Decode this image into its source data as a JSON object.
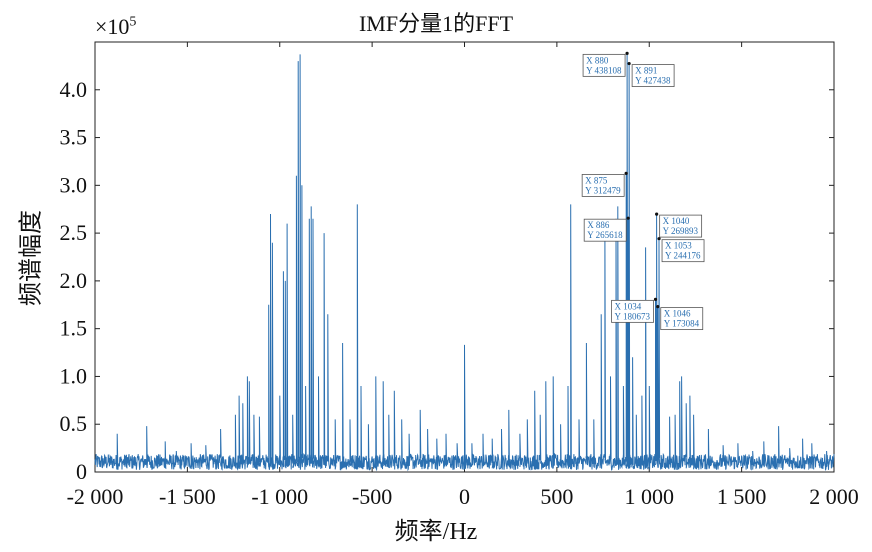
{
  "chart_data": {
    "type": "line",
    "title": "IMF分量1的FFT",
    "xlabel": "频率/Hz",
    "ylabel": "频谱幅度",
    "y_multiplier": "×10",
    "y_multiplier_exp": "5",
    "xlim": [
      -2000,
      2000
    ],
    "ylim": [
      0,
      450000
    ],
    "xticks": [
      -2000,
      -1500,
      -1000,
      -500,
      0,
      500,
      1000,
      1500,
      2000
    ],
    "xtick_labels": [
      "-2 000",
      "-1 500",
      "-1 000",
      "-500",
      "0",
      "500",
      "1 000",
      "1 500",
      "2 000"
    ],
    "yticks": [
      0,
      50000,
      100000,
      150000,
      200000,
      250000,
      300000,
      350000,
      400000
    ],
    "ytick_labels": [
      "0",
      "0.5",
      "1.0",
      "1.5",
      "2.0",
      "2.5",
      "3.0",
      "3.5",
      "4.0"
    ],
    "line_color": "#2a6fb0",
    "noise_floor": 15000,
    "peaks": [
      {
        "x": -1880,
        "y": 40000
      },
      {
        "x": -1830,
        "y": 18000
      },
      {
        "x": -1720,
        "y": 48000
      },
      {
        "x": -1620,
        "y": 32000
      },
      {
        "x": -1560,
        "y": 22000
      },
      {
        "x": -1480,
        "y": 30000
      },
      {
        "x": -1400,
        "y": 28000
      },
      {
        "x": -1320,
        "y": 45000
      },
      {
        "x": -1240,
        "y": 60000
      },
      {
        "x": -1220,
        "y": 80000
      },
      {
        "x": -1200,
        "y": 72000
      },
      {
        "x": -1175,
        "y": 100000
      },
      {
        "x": -1165,
        "y": 95000
      },
      {
        "x": -1140,
        "y": 60000
      },
      {
        "x": -1110,
        "y": 58000
      },
      {
        "x": -1060,
        "y": 175000
      },
      {
        "x": -1050,
        "y": 270000
      },
      {
        "x": -1040,
        "y": 240000
      },
      {
        "x": -1000,
        "y": 80000
      },
      {
        "x": -980,
        "y": 210000
      },
      {
        "x": -970,
        "y": 200000
      },
      {
        "x": -960,
        "y": 260000
      },
      {
        "x": -930,
        "y": 60000
      },
      {
        "x": -910,
        "y": 310000
      },
      {
        "x": -900,
        "y": 430000
      },
      {
        "x": -890,
        "y": 437000
      },
      {
        "x": -880,
        "y": 300000
      },
      {
        "x": -860,
        "y": 90000
      },
      {
        "x": -840,
        "y": 265000
      },
      {
        "x": -830,
        "y": 278000
      },
      {
        "x": -820,
        "y": 265000
      },
      {
        "x": -790,
        "y": 100000
      },
      {
        "x": -760,
        "y": 250000
      },
      {
        "x": -740,
        "y": 165000
      },
      {
        "x": -700,
        "y": 55000
      },
      {
        "x": -660,
        "y": 135000
      },
      {
        "x": -620,
        "y": 55000
      },
      {
        "x": -580,
        "y": 280000
      },
      {
        "x": -560,
        "y": 90000
      },
      {
        "x": -520,
        "y": 50000
      },
      {
        "x": -480,
        "y": 100000
      },
      {
        "x": -440,
        "y": 95000
      },
      {
        "x": -410,
        "y": 60000
      },
      {
        "x": -380,
        "y": 85000
      },
      {
        "x": -340,
        "y": 55000
      },
      {
        "x": -300,
        "y": 40000
      },
      {
        "x": -240,
        "y": 65000
      },
      {
        "x": -200,
        "y": 45000
      },
      {
        "x": -150,
        "y": 35000
      },
      {
        "x": -100,
        "y": 40000
      },
      {
        "x": -40,
        "y": 30000
      },
      {
        "x": 0,
        "y": 133000
      },
      {
        "x": 40,
        "y": 30000
      },
      {
        "x": 100,
        "y": 40000
      },
      {
        "x": 150,
        "y": 35000
      },
      {
        "x": 200,
        "y": 45000
      },
      {
        "x": 240,
        "y": 65000
      },
      {
        "x": 300,
        "y": 40000
      },
      {
        "x": 340,
        "y": 55000
      },
      {
        "x": 380,
        "y": 85000
      },
      {
        "x": 410,
        "y": 60000
      },
      {
        "x": 440,
        "y": 95000
      },
      {
        "x": 480,
        "y": 100000
      },
      {
        "x": 520,
        "y": 50000
      },
      {
        "x": 560,
        "y": 90000
      },
      {
        "x": 575,
        "y": 280000
      },
      {
        "x": 620,
        "y": 55000
      },
      {
        "x": 660,
        "y": 135000
      },
      {
        "x": 700,
        "y": 55000
      },
      {
        "x": 740,
        "y": 165000
      },
      {
        "x": 760,
        "y": 250000
      },
      {
        "x": 790,
        "y": 100000
      },
      {
        "x": 820,
        "y": 265000
      },
      {
        "x": 830,
        "y": 278000
      },
      {
        "x": 860,
        "y": 90000
      },
      {
        "x": 875,
        "y": 312479
      },
      {
        "x": 880,
        "y": 438108
      },
      {
        "x": 886,
        "y": 265618
      },
      {
        "x": 891,
        "y": 427438
      },
      {
        "x": 910,
        "y": 120000
      },
      {
        "x": 930,
        "y": 60000
      },
      {
        "x": 960,
        "y": 80000
      },
      {
        "x": 980,
        "y": 235000
      },
      {
        "x": 1000,
        "y": 90000
      },
      {
        "x": 1034,
        "y": 180673
      },
      {
        "x": 1040,
        "y": 269893
      },
      {
        "x": 1046,
        "y": 173084
      },
      {
        "x": 1053,
        "y": 244176
      },
      {
        "x": 1110,
        "y": 58000
      },
      {
        "x": 1140,
        "y": 60000
      },
      {
        "x": 1165,
        "y": 95000
      },
      {
        "x": 1175,
        "y": 100000
      },
      {
        "x": 1200,
        "y": 72000
      },
      {
        "x": 1220,
        "y": 80000
      },
      {
        "x": 1240,
        "y": 60000
      },
      {
        "x": 1320,
        "y": 45000
      },
      {
        "x": 1400,
        "y": 28000
      },
      {
        "x": 1480,
        "y": 30000
      },
      {
        "x": 1560,
        "y": 22000
      },
      {
        "x": 1620,
        "y": 32000
      },
      {
        "x": 1700,
        "y": 48000
      },
      {
        "x": 1760,
        "y": 25000
      },
      {
        "x": 1830,
        "y": 35000
      },
      {
        "x": 1880,
        "y": 30000
      },
      {
        "x": 1960,
        "y": 22000
      }
    ],
    "datatips": [
      {
        "name": "datatip-880",
        "x_label": "X",
        "x_value": "880",
        "y_label": "Y",
        "y_value": "438108",
        "x": 880,
        "y": 438108,
        "side": "left"
      },
      {
        "name": "datatip-891",
        "x_label": "X",
        "x_value": "891",
        "y_label": "Y",
        "y_value": "427438",
        "x": 891,
        "y": 427438,
        "side": "right"
      },
      {
        "name": "datatip-875",
        "x_label": "X",
        "x_value": "875",
        "y_label": "Y",
        "y_value": "312479",
        "x": 875,
        "y": 312479,
        "side": "left"
      },
      {
        "name": "datatip-886",
        "x_label": "X",
        "x_value": "886",
        "y_label": "Y",
        "y_value": "265618",
        "x": 886,
        "y": 265618,
        "side": "left"
      },
      {
        "name": "datatip-1040",
        "x_label": "X",
        "x_value": "1040",
        "y_label": "Y",
        "y_value": "269893",
        "x": 1040,
        "y": 269893,
        "side": "right"
      },
      {
        "name": "datatip-1053",
        "x_label": "X",
        "x_value": "1053",
        "y_label": "Y",
        "y_value": "244176",
        "x": 1053,
        "y": 244176,
        "side": "right"
      },
      {
        "name": "datatip-1034",
        "x_label": "X",
        "x_value": "1034",
        "y_label": "Y",
        "y_value": "180673",
        "x": 1034,
        "y": 180673,
        "side": "left"
      },
      {
        "name": "datatip-1046",
        "x_label": "X",
        "x_value": "1046",
        "y_label": "Y",
        "y_value": "173084",
        "x": 1046,
        "y": 173084,
        "side": "right"
      }
    ]
  }
}
